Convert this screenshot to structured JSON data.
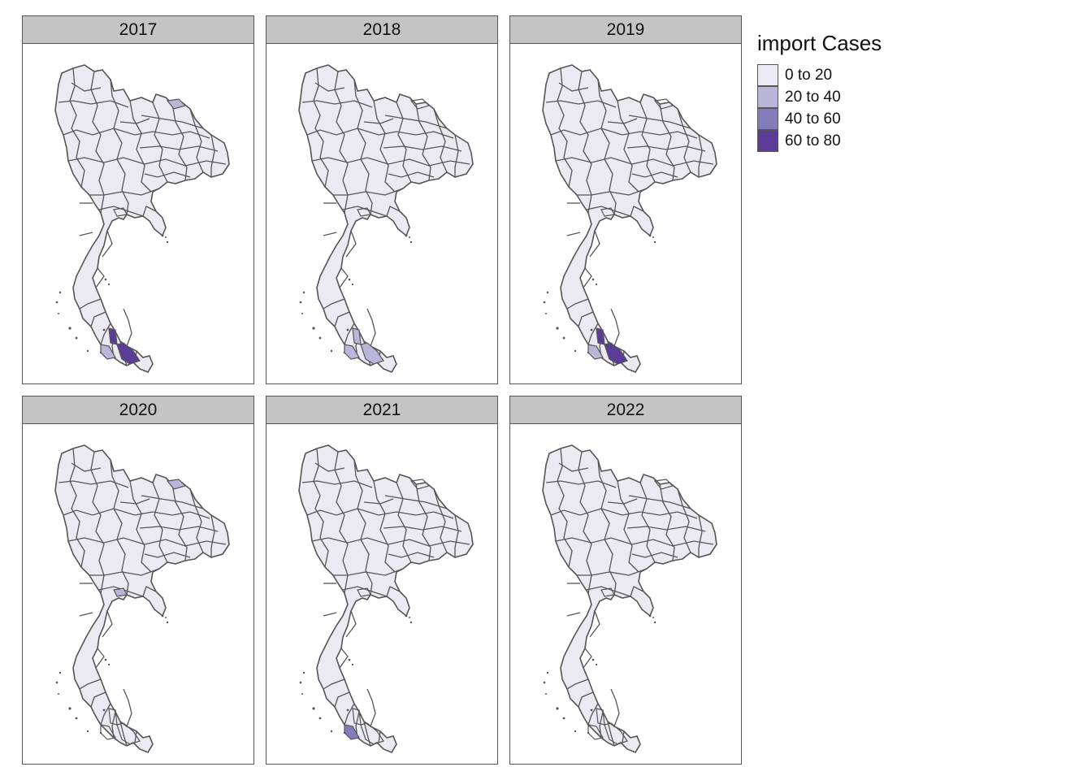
{
  "legend": {
    "title": "import Cases",
    "items": [
      {
        "label": "0 to 20",
        "color": "#ebe9f2"
      },
      {
        "label": "20 to 40",
        "color": "#bab6d9"
      },
      {
        "label": "40 to 60",
        "color": "#827cb9"
      },
      {
        "label": "60 to 80",
        "color": "#5b3c96"
      }
    ]
  },
  "panels": [
    {
      "year": "2017",
      "highlights": [
        {
          "region": "north-east-border",
          "class": 1
        },
        {
          "region": "south-a",
          "class": 3
        },
        {
          "region": "south-b",
          "class": 3
        },
        {
          "region": "south-c",
          "class": 1
        }
      ]
    },
    {
      "year": "2018",
      "highlights": [
        {
          "region": "south-a",
          "class": 1
        },
        {
          "region": "south-b",
          "class": 1
        },
        {
          "region": "south-c",
          "class": 1
        }
      ]
    },
    {
      "year": "2019",
      "highlights": [
        {
          "region": "south-a",
          "class": 3
        },
        {
          "region": "south-b",
          "class": 3
        },
        {
          "region": "south-c",
          "class": 1
        }
      ]
    },
    {
      "year": "2020",
      "highlights": [
        {
          "region": "north-east-border",
          "class": 1
        },
        {
          "region": "central",
          "class": 1
        }
      ]
    },
    {
      "year": "2021",
      "highlights": [
        {
          "region": "south-c",
          "class": 2
        }
      ]
    },
    {
      "year": "2022",
      "highlights": []
    }
  ]
}
